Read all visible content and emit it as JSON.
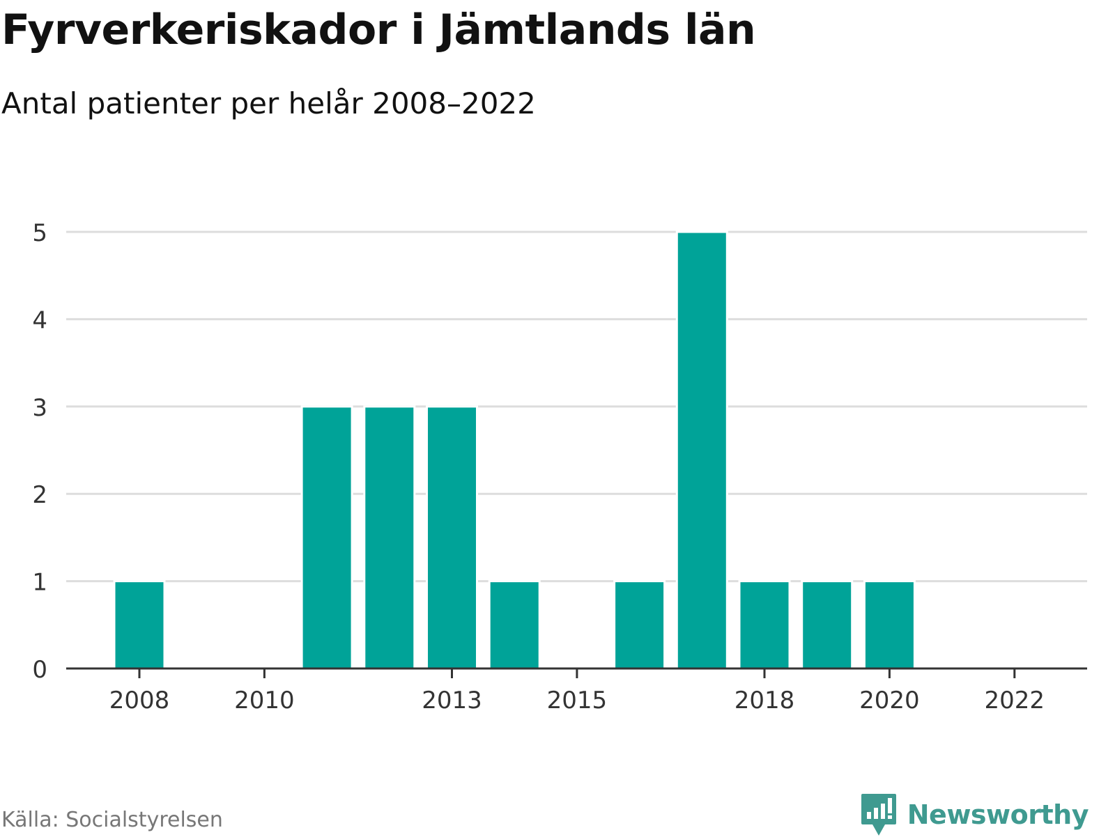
{
  "header": {
    "title": "Fyrverkeriskador i Jämtlands län",
    "subtitle": "Antal patienter per helår 2008–2022"
  },
  "footer": {
    "source": "Källa: Socialstyrelsen",
    "brand": "Newsworthy",
    "brand_icon": "newsworthy-logo-icon"
  },
  "colors": {
    "bar": "#00a398",
    "grid": "#dddddd",
    "axis": "#333333",
    "text": "#333333",
    "brand": "#3f9a90"
  },
  "chart_data": {
    "type": "bar",
    "x": [
      2008,
      2009,
      2010,
      2011,
      2012,
      2013,
      2014,
      2015,
      2016,
      2017,
      2018,
      2019,
      2020,
      2021,
      2022
    ],
    "values": [
      1,
      0,
      0,
      3,
      3,
      3,
      1,
      0,
      1,
      5,
      1,
      1,
      1,
      0,
      0
    ],
    "x_tick_labels": [
      "2008",
      "2010",
      "2013",
      "2015",
      "2018",
      "2020",
      "2022"
    ],
    "y_ticks": [
      0,
      1,
      2,
      3,
      4,
      5
    ],
    "ylim": [
      0,
      5
    ],
    "grid": true,
    "title": "Fyrverkeriskador i Jämtlands län",
    "subtitle": "Antal patienter per helår 2008–2022"
  }
}
